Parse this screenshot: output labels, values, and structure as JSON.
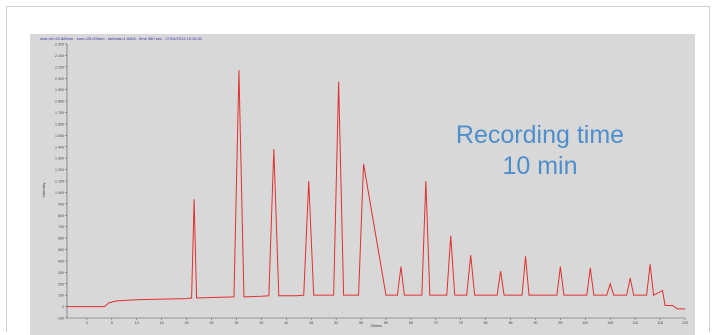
{
  "chart_data": {
    "type": "line",
    "title": "",
    "header_text": "max   rel=20.880nm - sum=25.000nm - lambda=1.5406 - time 360 sec - 27/04/2013 10:24:42",
    "xlabel": "2theta",
    "ylabel": "Intensity",
    "xlim": [
      -4,
      120
    ],
    "ylim": [
      -100,
      2300
    ],
    "xticks": [
      "0",
      "5",
      "10",
      "15",
      "20",
      "25",
      "30",
      "35",
      "40",
      "45",
      "50",
      "55",
      "60",
      "65",
      "70",
      "75",
      "80",
      "85",
      "90",
      "95",
      "100",
      "105",
      "110",
      "115",
      "120"
    ],
    "yticks": [
      "-100",
      "0",
      "100",
      "200",
      "300",
      "400",
      "500",
      "600",
      "700",
      "800",
      "900",
      "1 000",
      "1 100",
      "1 200",
      "1 300",
      "1 400",
      "1 500",
      "1 600",
      "1 700",
      "1 800",
      "1 900",
      "2 000",
      "2 100",
      "2 200",
      "2 300"
    ],
    "line_color": "#e03030",
    "series": [
      {
        "name": "",
        "x": [
          -4,
          0,
          3.5,
          4.5,
          6,
          10,
          15,
          20,
          21,
          21.5,
          22,
          25,
          29.5,
          30.5,
          31.5,
          35,
          36.5,
          37.5,
          38.5,
          42,
          43.5,
          44.5,
          45.5,
          48,
          49.5,
          50.5,
          51.5,
          53,
          54.5,
          55.5,
          60,
          62.3,
          63,
          63.7,
          66,
          67.2,
          68,
          68.8,
          71,
          72.2,
          73,
          73.8,
          75,
          76.2,
          77,
          77.8,
          80,
          82.3,
          83,
          83.7,
          86,
          87.3,
          88,
          88.7,
          93,
          94.3,
          95,
          95.7,
          99,
          100.3,
          101,
          101.7,
          103,
          104.3,
          105,
          105.7,
          107,
          108.3,
          109,
          109.7,
          111,
          112.3,
          113,
          113.7,
          115.5,
          116,
          117.5,
          118.5,
          120
        ],
        "y": [
          0,
          0,
          0,
          35,
          50,
          60,
          65,
          70,
          75,
          940,
          75,
          80,
          85,
          2070,
          85,
          90,
          95,
          1380,
          95,
          95,
          100,
          1100,
          100,
          100,
          100,
          1970,
          100,
          100,
          100,
          1250,
          100,
          100,
          350,
          100,
          100,
          100,
          1100,
          100,
          100,
          100,
          620,
          100,
          100,
          100,
          450,
          100,
          100,
          100,
          310,
          100,
          100,
          100,
          440,
          100,
          100,
          100,
          350,
          100,
          100,
          100,
          340,
          100,
          100,
          100,
          200,
          100,
          100,
          100,
          250,
          100,
          100,
          100,
          370,
          100,
          140,
          10,
          10,
          -20,
          -20
        ]
      }
    ],
    "annotation_line1": "Recording time",
    "annotation_line2": "10 min",
    "grid": false,
    "legend": "none"
  }
}
